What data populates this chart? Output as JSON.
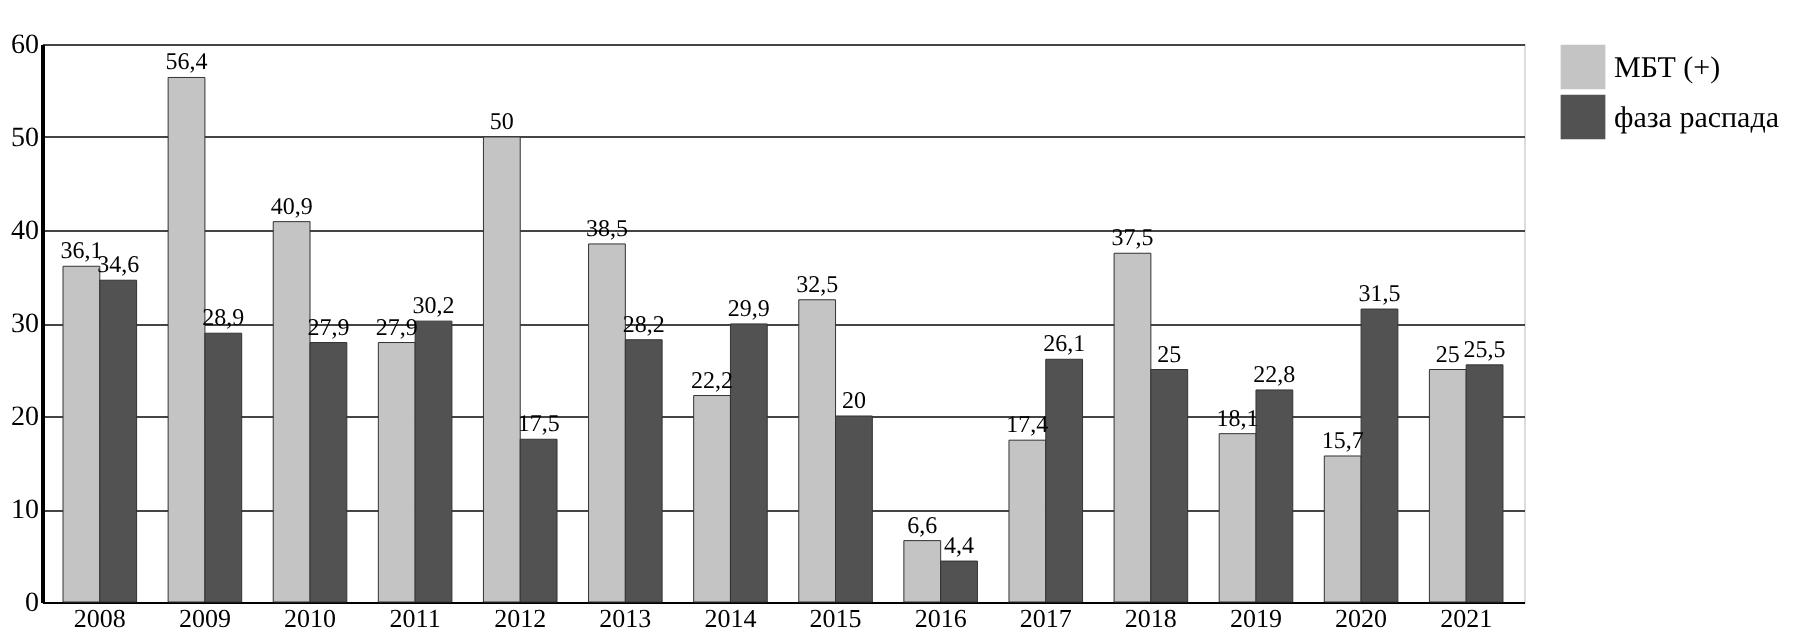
{
  "chart_data": {
    "type": "bar",
    "categories": [
      "2008",
      "2009",
      "2010",
      "2011",
      "2012",
      "2013",
      "2014",
      "2015",
      "2016",
      "2017",
      "2018",
      "2019",
      "2020",
      "2021"
    ],
    "series": [
      {
        "name": "МБТ (+)",
        "color": "#c4c4c4",
        "values": [
          36.1,
          56.4,
          40.9,
          27.9,
          50,
          38.5,
          22.2,
          32.5,
          6.6,
          17.4,
          37.5,
          18.1,
          15.7,
          25
        ],
        "value_labels": [
          "36,1",
          "56,4",
          "40,9",
          "27,9",
          "50",
          "38,5",
          "22,2",
          "32,5",
          "6,6",
          "17,4",
          "37,5",
          "18,1",
          "15,7",
          "25"
        ]
      },
      {
        "name": "фаза распада",
        "color": "#525252",
        "values": [
          34.6,
          28.9,
          27.9,
          30.2,
          17.5,
          28.2,
          29.9,
          20,
          4.4,
          26.1,
          25,
          22.8,
          31.5,
          25.5
        ],
        "value_labels": [
          "34,6",
          "28,9",
          "27,9",
          "30,2",
          "17,5",
          "28,2",
          "29,9",
          "20",
          "4,4",
          "26,1",
          "25",
          "22,8",
          "31,5",
          "25,5"
        ]
      }
    ],
    "ylim": [
      0,
      60
    ],
    "yticks": [
      0,
      10,
      20,
      30,
      40,
      50,
      60
    ],
    "grid": "y",
    "legend": "top right"
  }
}
